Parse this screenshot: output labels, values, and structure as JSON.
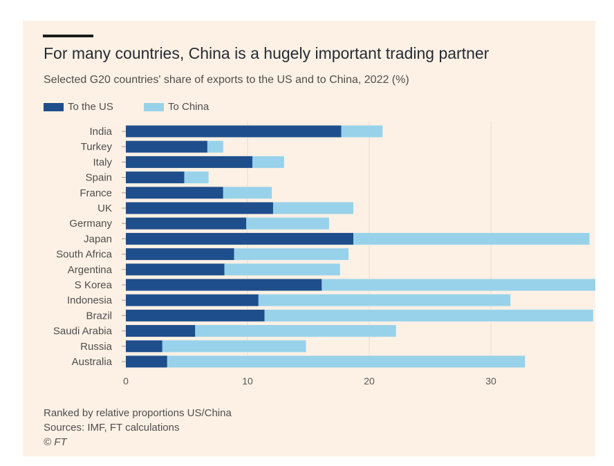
{
  "title": "For many countries, China is a hugely important trading partner",
  "subtitle": "Selected G20 countries' share of exports to the US and to China, 2022 (%)",
  "legend": [
    {
      "label": "To the US",
      "color": "#1f4e8c"
    },
    {
      "label": "To China",
      "color": "#98d2ea"
    }
  ],
  "footer": {
    "note": "Ranked by relative proportions US/China",
    "sources": "Sources: IMF, FT calculations",
    "credit": "© FT"
  },
  "chart_data": {
    "type": "bar",
    "orientation": "horizontal",
    "stacked": true,
    "categories": [
      "India",
      "Turkey",
      "Italy",
      "Spain",
      "France",
      "UK",
      "Germany",
      "Japan",
      "South Africa",
      "Argentina",
      "S Korea",
      "Indonesia",
      "Brazil",
      "Saudi Arabia",
      "Russia",
      "Australia"
    ],
    "series": [
      {
        "name": "To the US",
        "color": "#1f4e8c",
        "values": [
          17.7,
          6.7,
          10.4,
          4.8,
          8.0,
          12.1,
          9.9,
          18.7,
          8.9,
          8.1,
          16.1,
          10.9,
          11.4,
          5.7,
          3.0,
          3.4
        ]
      },
      {
        "name": "To China",
        "color": "#98d2ea",
        "values": [
          3.4,
          1.3,
          2.6,
          2.0,
          4.0,
          6.6,
          6.8,
          19.4,
          9.4,
          9.5,
          22.7,
          20.7,
          27.0,
          16.5,
          11.8,
          29.4
        ]
      }
    ],
    "xticks": [
      0,
      10,
      20,
      30
    ],
    "xlim": [
      0,
      38.5
    ],
    "grid": true,
    "legend_position": "top-left"
  }
}
